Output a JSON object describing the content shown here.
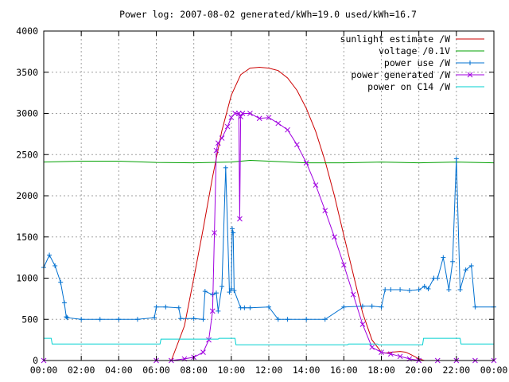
{
  "chart_data": {
    "type": "line",
    "title": "Power log: 2007-08-02 generated/kWh=19.0 used/kWh=16.7",
    "xlabel": "",
    "ylabel": "",
    "xlim": [
      0,
      24
    ],
    "ylim": [
      0,
      4000
    ],
    "grid": true,
    "legend_position": "top-right",
    "x_tick_labels": [
      "00:00",
      "02:00",
      "04:00",
      "06:00",
      "08:00",
      "10:00",
      "12:00",
      "14:00",
      "16:00",
      "18:00",
      "20:00",
      "22:00",
      "00:00"
    ],
    "y_tick_labels": [
      "0",
      "500",
      "1000",
      "1500",
      "2000",
      "2500",
      "3000",
      "3500",
      "4000"
    ],
    "series": [
      {
        "name": "sunlight estimate /W",
        "color": "#cc0000",
        "marker": "none",
        "x": [
          6.8,
          7.5,
          8,
          8.5,
          9,
          9.5,
          10,
          10.5,
          11,
          11.5,
          12,
          12.5,
          13,
          13.5,
          14,
          14.5,
          15,
          15.5,
          16,
          16.5,
          17,
          17.5,
          18,
          18.2,
          18.5,
          19,
          19.3,
          19.6,
          20,
          20.3
        ],
        "values": [
          0,
          420,
          1000,
          1600,
          2230,
          2790,
          3220,
          3470,
          3550,
          3560,
          3550,
          3520,
          3430,
          3280,
          3060,
          2780,
          2420,
          2000,
          1520,
          1050,
          580,
          250,
          100,
          90,
          100,
          110,
          100,
          70,
          20,
          0
        ]
      },
      {
        "name": "voltage /0.1V",
        "color": "#00a000",
        "marker": "none",
        "x": [
          0,
          2,
          4,
          6,
          8,
          10,
          11,
          12,
          14,
          16,
          18,
          20,
          22,
          24
        ],
        "values": [
          2410,
          2420,
          2420,
          2405,
          2400,
          2410,
          2430,
          2420,
          2400,
          2400,
          2410,
          2400,
          2410,
          2400
        ]
      },
      {
        "name": "power use /W",
        "color": "#0070d0",
        "marker": "plus",
        "x": [
          0,
          0.3,
          0.6,
          0.9,
          1.1,
          1.2,
          1.25,
          2,
          3,
          4,
          5,
          5.9,
          6,
          6.5,
          7.2,
          7.3,
          8,
          8.5,
          8.6,
          9,
          9.2,
          9.3,
          9.5,
          9.7,
          9.9,
          10,
          10.05,
          10.1,
          10.15,
          10.5,
          10.7,
          11,
          12,
          12.5,
          13,
          14,
          15,
          16,
          17,
          17.5,
          18,
          18.2,
          18.5,
          19,
          19.5,
          20,
          20.3,
          20.5,
          20.8,
          21,
          21.3,
          21.6,
          21.8,
          22,
          22.2,
          22.5,
          22.8,
          23,
          24
        ],
        "values": [
          1130,
          1280,
          1150,
          950,
          700,
          530,
          520,
          500,
          500,
          500,
          500,
          520,
          650,
          650,
          640,
          510,
          510,
          500,
          840,
          800,
          820,
          600,
          900,
          2340,
          830,
          870,
          1600,
          1550,
          850,
          640,
          640,
          640,
          650,
          500,
          500,
          500,
          500,
          650,
          660,
          660,
          650,
          860,
          860,
          860,
          850,
          860,
          900,
          870,
          1000,
          1000,
          1250,
          860,
          1200,
          2450,
          860,
          1100,
          1150,
          650,
          650
        ]
      },
      {
        "name": "power generated /W",
        "color": "#a000e0",
        "marker": "cross",
        "x": [
          0,
          6,
          6.8,
          7.5,
          8,
          8.5,
          8.8,
          9,
          9.1,
          9.2,
          9.3,
          9.5,
          9.8,
          10,
          10.2,
          10.4,
          10.45,
          10.5,
          10.6,
          11,
          11.5,
          12,
          12.5,
          13,
          13.5,
          14,
          14.5,
          15,
          15.5,
          16,
          16.5,
          17,
          17.5,
          18,
          18.5,
          19,
          19.5,
          20,
          21,
          22,
          23,
          24
        ],
        "values": [
          0,
          0,
          0,
          20,
          40,
          100,
          250,
          600,
          1550,
          2550,
          2640,
          2700,
          2840,
          2950,
          3000,
          3000,
          1720,
          2960,
          3000,
          3000,
          2940,
          2950,
          2880,
          2800,
          2620,
          2400,
          2130,
          1820,
          1500,
          1160,
          800,
          440,
          160,
          100,
          80,
          50,
          20,
          0,
          0,
          0,
          0,
          0
        ]
      },
      {
        "name": "power on C14 /W",
        "color": "#00d0d0",
        "marker": "none",
        "x": [
          0,
          0.4,
          0.45,
          6.2,
          6.25,
          9.3,
          9.35,
          10.2,
          10.25,
          16.2,
          16.25,
          17.8,
          17.85,
          20.2,
          20.25,
          22.2,
          22.25,
          24
        ],
        "values": [
          270,
          270,
          200,
          200,
          260,
          260,
          270,
          270,
          190,
          190,
          200,
          200,
          190,
          190,
          270,
          270,
          200,
          200
        ]
      }
    ]
  }
}
